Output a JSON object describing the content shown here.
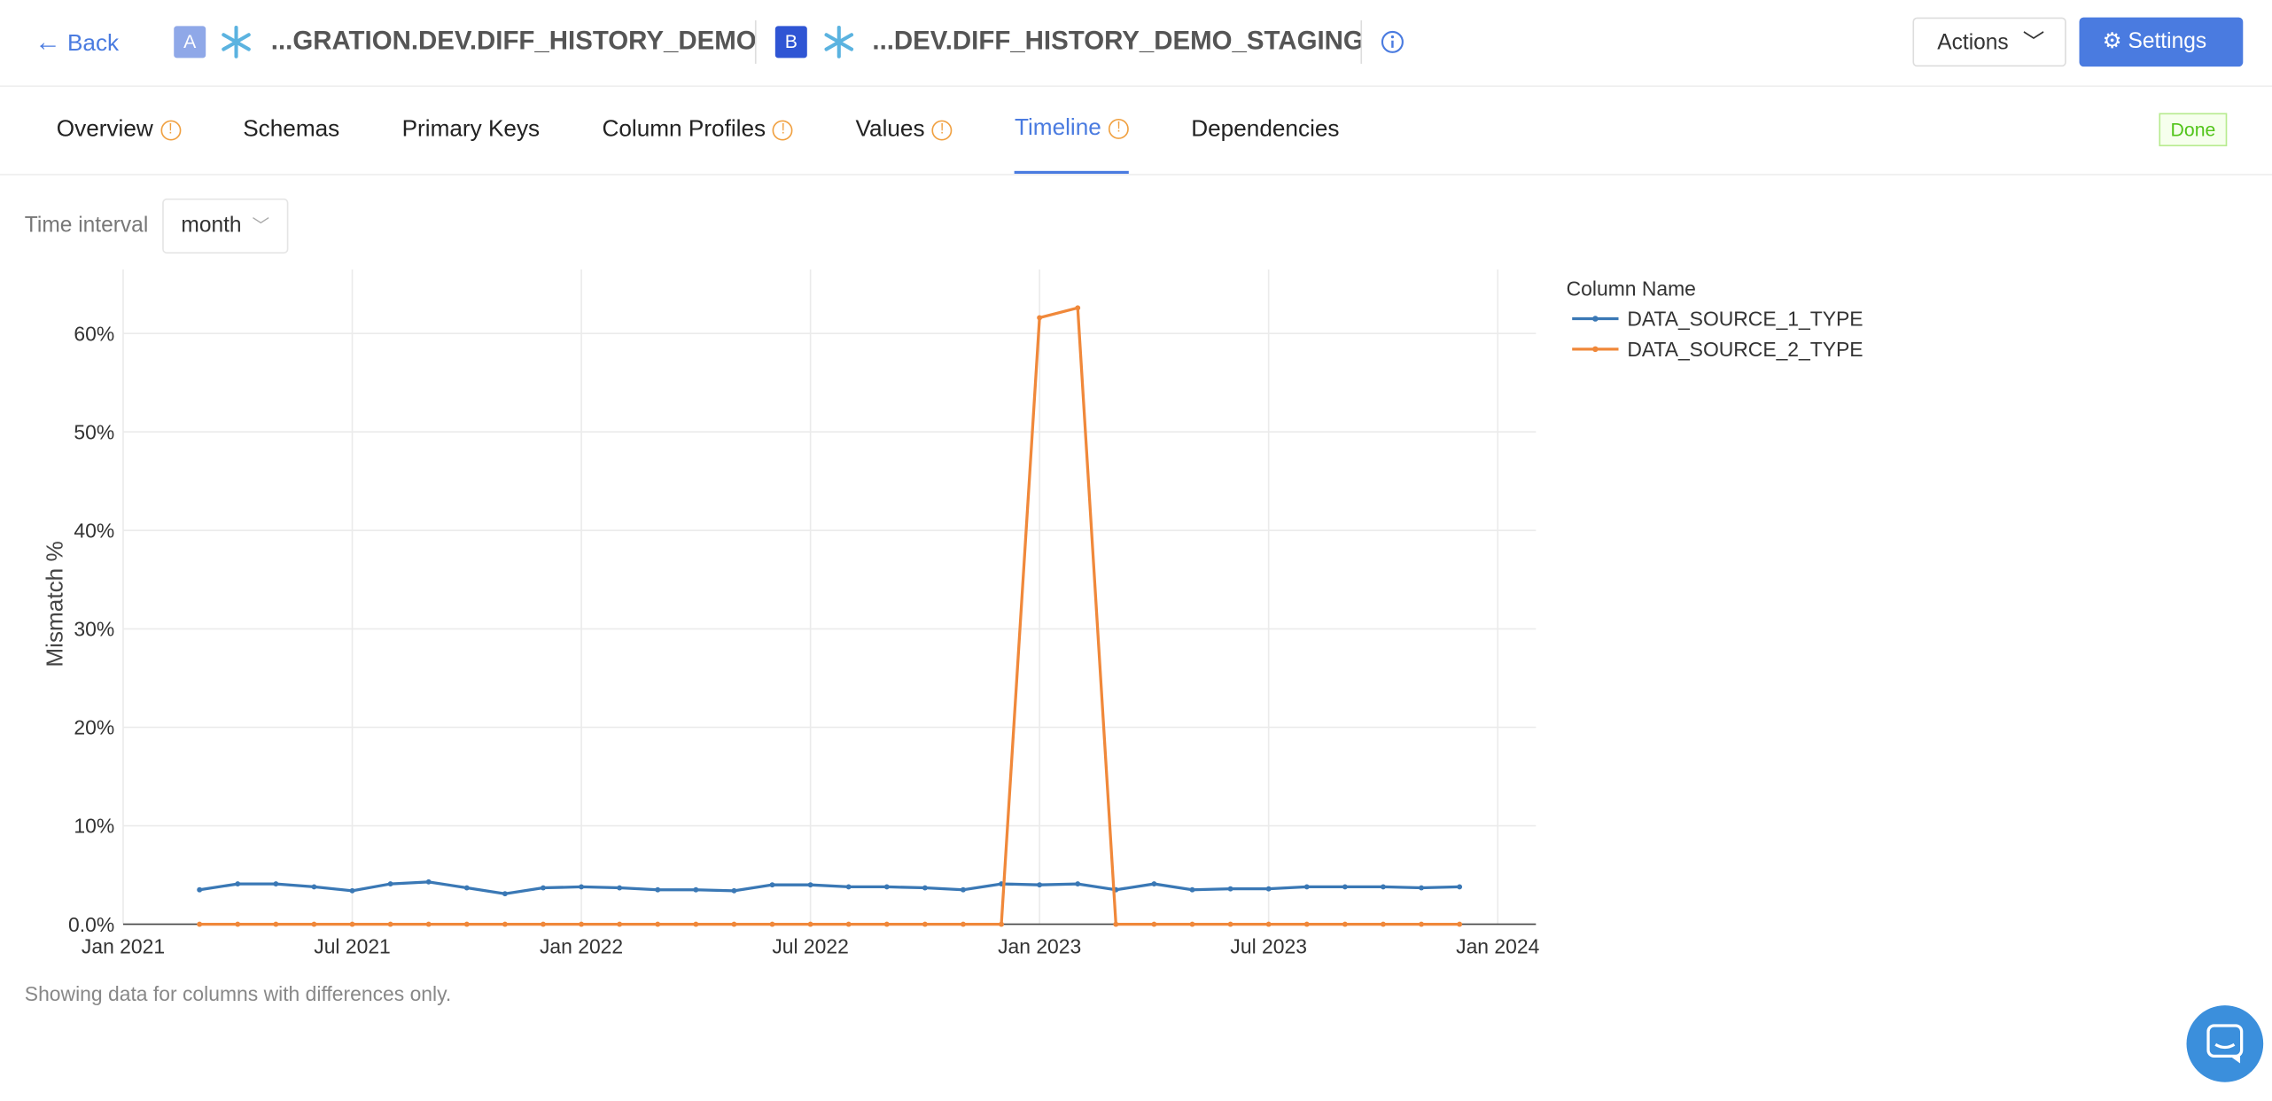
{
  "header": {
    "back": "Back",
    "source_a": {
      "badge": "A",
      "name": "...GRATION.DEV.DIFF_HISTORY_DEMO"
    },
    "source_b": {
      "badge": "B",
      "name": "...DEV.DIFF_HISTORY_DEMO_STAGING"
    },
    "actions": "Actions",
    "settings": "Settings"
  },
  "tabs": [
    {
      "label": "Overview",
      "warning": true
    },
    {
      "label": "Schemas",
      "warning": false
    },
    {
      "label": "Primary Keys",
      "warning": false
    },
    {
      "label": "Column Profiles",
      "warning": true
    },
    {
      "label": "Values",
      "warning": true
    },
    {
      "label": "Timeline",
      "warning": true,
      "active": true
    },
    {
      "label": "Dependencies",
      "warning": false
    }
  ],
  "status": "Done",
  "controls": {
    "label": "Time interval",
    "value": "month"
  },
  "chart_data": {
    "type": "line",
    "y_label": "Mismatch %",
    "legend_title": "Column Name",
    "legend": "top-right",
    "grid": true,
    "x": [
      "2021-03",
      "2021-04",
      "2021-05",
      "2021-06",
      "2021-07",
      "2021-08",
      "2021-09",
      "2021-10",
      "2021-11",
      "2021-12",
      "2022-01",
      "2022-02",
      "2022-03",
      "2022-04",
      "2022-05",
      "2022-06",
      "2022-07",
      "2022-08",
      "2022-09",
      "2022-10",
      "2022-11",
      "2022-12",
      "2023-01",
      "2023-02",
      "2023-03",
      "2023-04",
      "2023-05",
      "2023-06",
      "2023-07",
      "2023-08",
      "2023-09",
      "2023-10",
      "2023-11",
      "2023-12"
    ],
    "series": [
      {
        "name": "DATA_SOURCE_1_TYPE",
        "color": "#3a78b5",
        "values": [
          3.5,
          4.1,
          4.1,
          3.8,
          3.4,
          4.1,
          4.3,
          3.7,
          3.1,
          3.7,
          3.8,
          3.7,
          3.5,
          3.5,
          3.4,
          4.0,
          4.0,
          3.8,
          3.8,
          3.7,
          3.5,
          4.1,
          4.0,
          4.1,
          3.5,
          4.1,
          3.5,
          3.6,
          3.6,
          3.8,
          3.8,
          3.8,
          3.7,
          3.8
        ]
      },
      {
        "name": "DATA_SOURCE_2_TYPE",
        "color": "#f0883a",
        "values": [
          0,
          0,
          0,
          0,
          0,
          0,
          0,
          0,
          0,
          0,
          0,
          0,
          0,
          0,
          0,
          0,
          0,
          0,
          0,
          0,
          0,
          0,
          61.6,
          62.6,
          0,
          0,
          0,
          0,
          0,
          0,
          0,
          0,
          0,
          0
        ]
      }
    ],
    "xlim": [
      "2021-01",
      "2024-02"
    ],
    "xticks": [
      {
        "value": "2021-01",
        "label": "Jan 2021"
      },
      {
        "value": "2021-07",
        "label": "Jul 2021"
      },
      {
        "value": "2022-01",
        "label": "Jan 2022"
      },
      {
        "value": "2022-07",
        "label": "Jul 2022"
      },
      {
        "value": "2023-01",
        "label": "Jan 2023"
      },
      {
        "value": "2023-07",
        "label": "Jul 2023"
      },
      {
        "value": "2024-01",
        "label": "Jan 2024"
      }
    ],
    "ylim": [
      0,
      66.5
    ],
    "yticks": [
      {
        "value": 0,
        "label": "0.0%"
      },
      {
        "value": 10,
        "label": "10%"
      },
      {
        "value": 20,
        "label": "20%"
      },
      {
        "value": 30,
        "label": "30%"
      },
      {
        "value": 40,
        "label": "40%"
      },
      {
        "value": 50,
        "label": "50%"
      },
      {
        "value": 60,
        "label": "60%"
      }
    ]
  },
  "note": "Showing data for columns with differences only."
}
